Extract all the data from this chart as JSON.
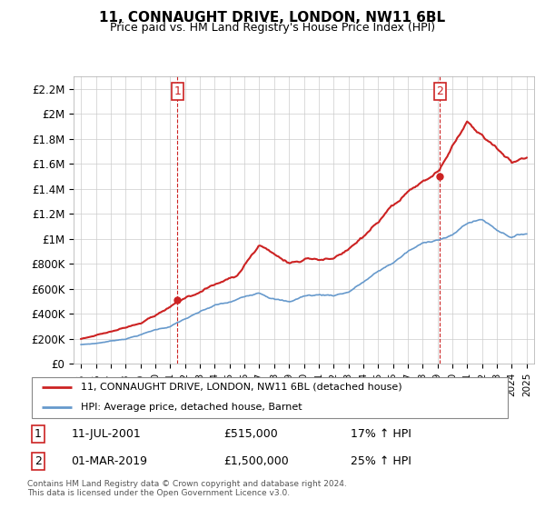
{
  "title": "11, CONNAUGHT DRIVE, LONDON, NW11 6BL",
  "subtitle": "Price paid vs. HM Land Registry's House Price Index (HPI)",
  "footer": "Contains HM Land Registry data © Crown copyright and database right 2024.\nThis data is licensed under the Open Government Licence v3.0.",
  "legend_house": "11, CONNAUGHT DRIVE, LONDON, NW11 6BL (detached house)",
  "legend_hpi": "HPI: Average price, detached house, Barnet",
  "annotation1_label": "1",
  "annotation1_date": "11-JUL-2001",
  "annotation1_price": "£515,000",
  "annotation1_hpi": "17% ↑ HPI",
  "annotation2_label": "2",
  "annotation2_date": "01-MAR-2019",
  "annotation2_price": "£1,500,000",
  "annotation2_hpi": "25% ↑ HPI",
  "house_color": "#cc2222",
  "hpi_color": "#6699cc",
  "vline_color": "#cc2222",
  "ylim": [
    0,
    2300000
  ],
  "yticks": [
    0,
    200000,
    400000,
    600000,
    800000,
    1000000,
    1200000,
    1400000,
    1600000,
    1800000,
    2000000,
    2200000
  ],
  "ytick_labels": [
    "£0",
    "£200K",
    "£400K",
    "£600K",
    "£800K",
    "£1M",
    "£1.2M",
    "£1.4M",
    "£1.6M",
    "£1.8M",
    "£2M",
    "£2.2M"
  ],
  "hpi_years": [
    1995,
    1996,
    1997,
    1998,
    1999,
    2000,
    2001,
    2002,
    2003,
    2004,
    2005,
    2006,
    2007,
    2008,
    2009,
    2010,
    2011,
    2012,
    2013,
    2014,
    2015,
    2016,
    2017,
    2018,
    2019,
    2020,
    2021,
    2022,
    2023,
    2024,
    2025
  ],
  "hpi_values": [
    155000,
    165000,
    185000,
    205000,
    240000,
    280000,
    310000,
    370000,
    420000,
    470000,
    490000,
    530000,
    580000,
    540000,
    510000,
    560000,
    570000,
    570000,
    600000,
    680000,
    760000,
    830000,
    920000,
    980000,
    1020000,
    1050000,
    1150000,
    1180000,
    1100000,
    1050000,
    1080000
  ],
  "house_key_years": [
    1995.0,
    1997.5,
    1999.0,
    2001.5,
    2003.5,
    2005.5,
    2007.0,
    2009.0,
    2010.5,
    2012.0,
    2013.0,
    2015.0,
    2017.0,
    2019.17,
    2020.0,
    2021.0,
    2022.0,
    2023.0,
    2024.0,
    2025.0
  ],
  "house_key_vals": [
    200000,
    280000,
    350000,
    515000,
    650000,
    750000,
    1000000,
    850000,
    900000,
    900000,
    950000,
    1150000,
    1350000,
    1500000,
    1700000,
    1900000,
    1800000,
    1700000,
    1600000,
    1650000
  ],
  "vline1_x": 2001.5,
  "vline2_x": 2019.17,
  "xmin": 1994.5,
  "xmax": 2025.5
}
